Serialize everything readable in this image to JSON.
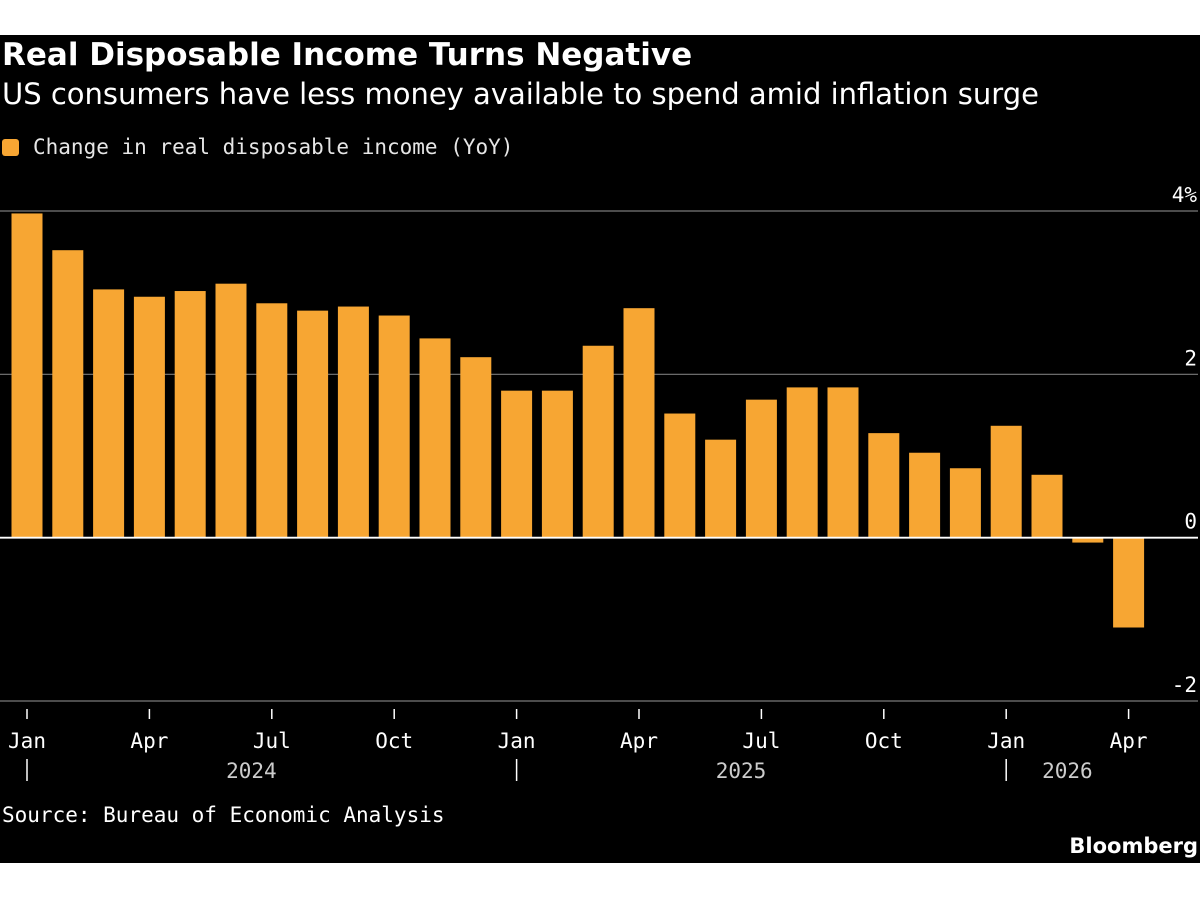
{
  "header": {
    "title": "Real Disposable Income Turns Negative",
    "subtitle": "US consumers have less money available to spend amid inflation surge"
  },
  "footer": {
    "source": "Source: Bureau of Economic Analysis",
    "brand": "Bloomberg"
  },
  "colors": {
    "background": "#000000",
    "bar": "#f7a633",
    "text": "#ffffff",
    "gridline": "#7a7a7a"
  },
  "chart_data": {
    "type": "bar",
    "title": "Real Disposable Income Turns Negative",
    "subtitle": "US consumers have less money available to spend amid inflation surge",
    "legend": {
      "position": "top-left",
      "entries": [
        "Change in real disposable income (YoY)"
      ]
    },
    "grid": true,
    "y_axis": {
      "position": "right",
      "ylim": [
        -2,
        4
      ],
      "ticks": [
        4,
        2,
        0,
        -2
      ],
      "tick_labels": [
        "4%",
        "2",
        "0",
        "-2"
      ]
    },
    "x_tick_labels": [
      {
        "index": 0,
        "label": "Jan"
      },
      {
        "index": 3,
        "label": "Apr"
      },
      {
        "index": 6,
        "label": "Jul"
      },
      {
        "index": 9,
        "label": "Oct"
      },
      {
        "index": 12,
        "label": "Jan"
      },
      {
        "index": 15,
        "label": "Apr"
      },
      {
        "index": 18,
        "label": "Jul"
      },
      {
        "index": 21,
        "label": "Oct"
      },
      {
        "index": 24,
        "label": "Jan"
      },
      {
        "index": 27,
        "label": "Apr"
      }
    ],
    "year_labels": [
      {
        "label": "2024",
        "start_index": 0,
        "end_index": 11
      },
      {
        "label": "2025",
        "start_index": 12,
        "end_index": 23
      },
      {
        "label": "2026",
        "start_index": 24,
        "end_index": 27
      }
    ],
    "categories": [
      "Jan 2024",
      "Feb 2024",
      "Mar 2024",
      "Apr 2024",
      "May 2024",
      "Jun 2024",
      "Jul 2024",
      "Aug 2024",
      "Sep 2024",
      "Oct 2024",
      "Nov 2024",
      "Dec 2024",
      "Jan 2025",
      "Feb 2025",
      "Mar 2025",
      "Apr 2025",
      "May 2025",
      "Jun 2025",
      "Jul 2025",
      "Aug 2025",
      "Sep 2025",
      "Oct 2025",
      "Nov 2025",
      "Dec 2025",
      "Jan 2026",
      "Feb 2026",
      "Mar 2026",
      "Apr 2026"
    ],
    "series": [
      {
        "name": "Change in real disposable income (YoY)",
        "values": [
          3.97,
          3.52,
          3.04,
          2.95,
          3.02,
          3.11,
          2.87,
          2.78,
          2.83,
          2.72,
          2.44,
          2.21,
          1.8,
          1.8,
          2.35,
          2.81,
          1.52,
          1.2,
          1.69,
          1.84,
          1.84,
          1.28,
          1.04,
          0.85,
          1.37,
          0.77,
          -0.06,
          -1.1
        ]
      }
    ]
  }
}
